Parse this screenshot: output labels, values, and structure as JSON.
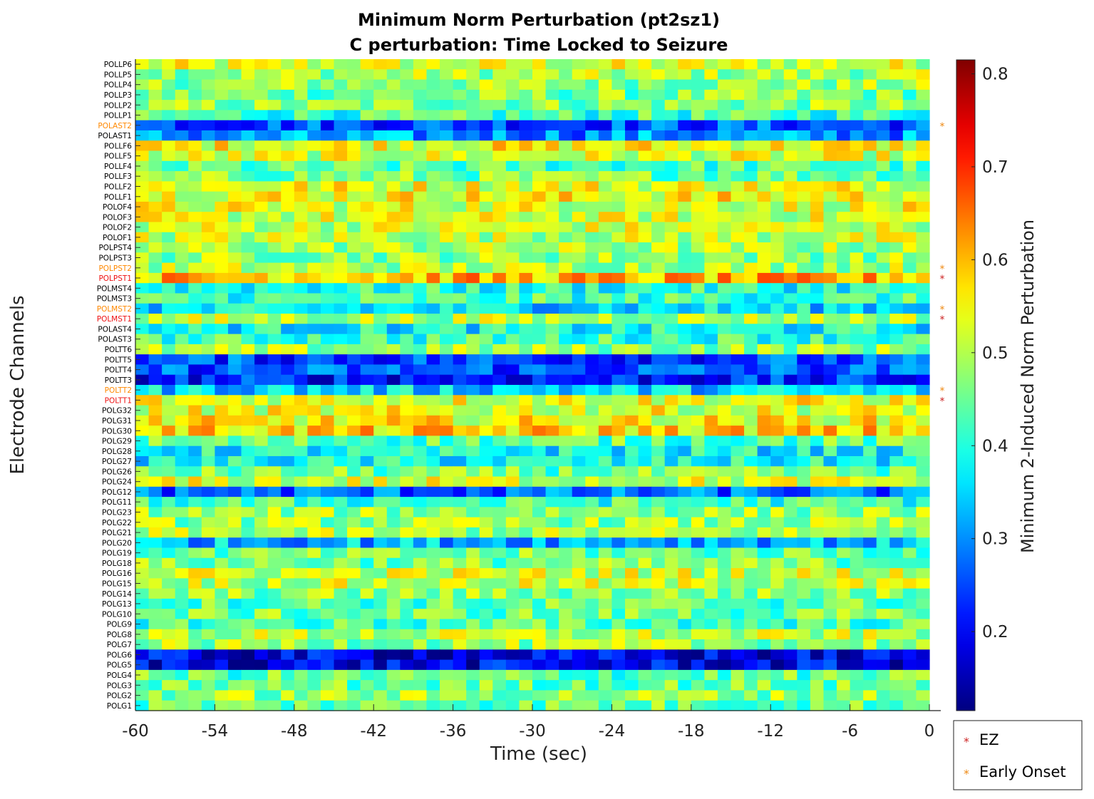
{
  "chart_data": {
    "type": "heatmap",
    "title": [
      "Minimum Norm Perturbation (pt2sz1)",
      "C perturbation:  Time Locked to Seizure"
    ],
    "xlabel": "Time (sec)",
    "ylabel": "Electrode Channels",
    "xlim": [
      -60,
      0
    ],
    "x_ticks": [
      -60,
      -54,
      -48,
      -42,
      -36,
      -30,
      -24,
      -18,
      -12,
      -6,
      0
    ],
    "x_tick_labels": [
      "-60",
      "-54",
      "-48",
      "-42",
      "-36",
      "-30",
      "-24",
      "-18",
      "-12",
      "-6",
      "0"
    ],
    "n_time_windows": 60,
    "channels": [
      "POLLP6",
      "POLLP5",
      "POLLP4",
      "POLLP3",
      "POLLP2",
      "POLLP1",
      "POLAST2",
      "POLAST1",
      "POLLF6",
      "POLLF5",
      "POLLF4",
      "POLLF3",
      "POLLF2",
      "POLLF1",
      "POLOF4",
      "POLOF3",
      "POLOF2",
      "POLOF1",
      "POLPST4",
      "POLPST3",
      "POLPST2",
      "POLPST1",
      "POLMST4",
      "POLMST3",
      "POLMST2",
      "POLMST1",
      "POLAST4",
      "POLAST3",
      "POLTT6",
      "POLTT5",
      "POLTT4",
      "POLTT3",
      "POLTT2",
      "POLTT1",
      "POLG32",
      "POLG31",
      "POLG30",
      "POLG29",
      "POLG28",
      "POLG27",
      "POLG26",
      "POLG24",
      "POLG12",
      "POLG11",
      "POLG23",
      "POLG22",
      "POLG21",
      "POLG20",
      "POLG19",
      "POLG18",
      "POLG16",
      "POLG15",
      "POLG14",
      "POLG13",
      "POLG10",
      "POLG9",
      "POLG8",
      "POLG7",
      "POLG6",
      "POLG5",
      "POLG4",
      "POLG3",
      "POLG2",
      "POLG1"
    ],
    "channel_means": [
      0.52,
      0.49,
      0.48,
      0.46,
      0.47,
      0.42,
      0.26,
      0.3,
      0.55,
      0.52,
      0.43,
      0.46,
      0.54,
      0.55,
      0.53,
      0.52,
      0.52,
      0.51,
      0.49,
      0.48,
      0.5,
      0.6,
      0.4,
      0.42,
      0.36,
      0.5,
      0.38,
      0.42,
      0.48,
      0.25,
      0.26,
      0.22,
      0.35,
      0.54,
      0.53,
      0.55,
      0.58,
      0.44,
      0.38,
      0.38,
      0.45,
      0.52,
      0.27,
      0.42,
      0.48,
      0.48,
      0.49,
      0.33,
      0.45,
      0.46,
      0.52,
      0.51,
      0.47,
      0.44,
      0.45,
      0.43,
      0.5,
      0.48,
      0.18,
      0.19,
      0.44,
      0.45,
      0.48,
      0.45
    ],
    "highlighted_channels": {
      "POLAST2": "Early Onset",
      "POLPST2": "Early Onset",
      "POLPST1": "EZ",
      "POLMST2": "Early Onset",
      "POLMST1": "EZ",
      "POLTT2": "Early Onset",
      "POLTT1": "EZ"
    },
    "colormap": "jet",
    "colorbar": {
      "label": "Minimum 2-Induced Norm Perturbation",
      "clim": [
        0.115,
        0.815
      ],
      "ticks": [
        0.2,
        0.3,
        0.4,
        0.5,
        0.6,
        0.7,
        0.8
      ],
      "tick_labels": [
        "0.2",
        "0.3",
        "0.4",
        "0.5",
        "0.6",
        "0.7",
        "0.8"
      ]
    },
    "legend": {
      "position": "bottom-right",
      "entries": [
        {
          "label": "EZ",
          "marker": "*",
          "color": "#cc2222"
        },
        {
          "label": "Early Onset",
          "marker": "*",
          "color": "#ee8811"
        }
      ]
    },
    "label_colors": {
      "EZ": "#ee1111",
      "Early Onset": "#ff8800",
      "normal": "#000000"
    }
  }
}
